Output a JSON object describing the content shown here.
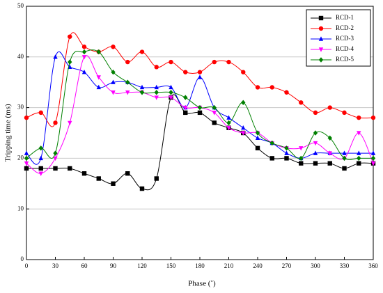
{
  "chart_data": {
    "type": "line",
    "x_label": "Phase (˚)",
    "y_label": "Tripping time (ms)",
    "x": [
      0,
      15,
      30,
      45,
      60,
      75,
      90,
      105,
      120,
      135,
      150,
      165,
      180,
      195,
      210,
      225,
      240,
      255,
      270,
      285,
      300,
      315,
      330,
      345,
      360
    ],
    "series": [
      {
        "name": "RCD-1",
        "color": "#000000",
        "marker": "square",
        "values": [
          18,
          18,
          18,
          18,
          17,
          16,
          15,
          17,
          14,
          16,
          32,
          29,
          29,
          27,
          26,
          25,
          22,
          20,
          20,
          19,
          19,
          19,
          18,
          19,
          19
        ]
      },
      {
        "name": "RCD-2",
        "color": "#ff0000",
        "marker": "circle",
        "values": [
          28,
          29,
          27,
          44,
          42,
          41,
          42,
          39,
          41,
          38,
          39,
          37,
          37,
          39,
          39,
          37,
          34,
          34,
          33,
          31,
          29,
          30,
          29,
          28,
          28
        ]
      },
      {
        "name": "RCD-3",
        "color": "#0000ff",
        "marker": "triangle-up",
        "values": [
          21,
          20,
          40,
          38,
          37,
          34,
          35,
          35,
          34,
          34,
          34,
          30,
          36,
          30,
          28,
          26,
          24,
          23,
          21,
          20,
          21,
          21,
          21,
          21,
          21
        ]
      },
      {
        "name": "RCD-4",
        "color": "#ff00ff",
        "marker": "triangle-down",
        "values": [
          19,
          17,
          20,
          27,
          40,
          36,
          33,
          33,
          33,
          32,
          32,
          30,
          30,
          29,
          26,
          25,
          25,
          23,
          22,
          22,
          23,
          21,
          20,
          25,
          19
        ]
      },
      {
        "name": "RCD-5",
        "color": "#008000",
        "marker": "diamond",
        "values": [
          20,
          22,
          21,
          39,
          41,
          41,
          37,
          35,
          33,
          33,
          33,
          32,
          30,
          30,
          27,
          31,
          25,
          23,
          22,
          20,
          25,
          24,
          20,
          20,
          20
        ]
      }
    ],
    "xlim": [
      0,
      360
    ],
    "xticks": [
      0,
      30,
      60,
      90,
      120,
      150,
      180,
      210,
      240,
      270,
      300,
      330,
      360
    ],
    "ylim": [
      0,
      50
    ],
    "yticks": [
      0,
      10,
      20,
      30,
      40,
      50
    ],
    "grid": true,
    "legend": "top-right"
  }
}
